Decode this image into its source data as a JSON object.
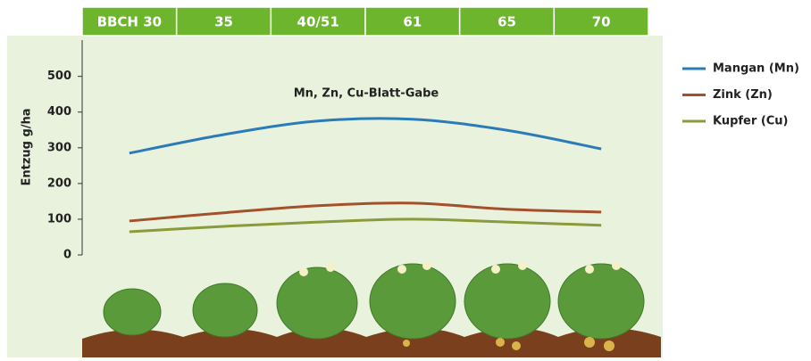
{
  "chart_data": {
    "type": "line",
    "categories": [
      "BBCH 30",
      "35",
      "40/51",
      "61",
      "65",
      "70"
    ],
    "y_label": "Entzug g/ha",
    "annotation": "Mn, Zn, Cu-Blatt-Gabe",
    "series": [
      {
        "name": "Mangan (Mn)",
        "color": "#2b7bb9",
        "values": [
          285,
          337,
          375,
          380,
          349,
          297
        ]
      },
      {
        "name": "Zink (Zn)",
        "color": "#a5502c",
        "values": [
          95,
          118,
          138,
          145,
          128,
          120
        ]
      },
      {
        "name": "Kupfer (Cu)",
        "color": "#8b9a3a",
        "values": [
          65,
          80,
          92,
          100,
          92,
          83
        ]
      }
    ],
    "ylim": [
      0,
      600
    ],
    "yticks": [
      0,
      100,
      200,
      300,
      400,
      500
    ],
    "header_color": "#6cb52d",
    "panel_color": "#e9f2dc"
  }
}
